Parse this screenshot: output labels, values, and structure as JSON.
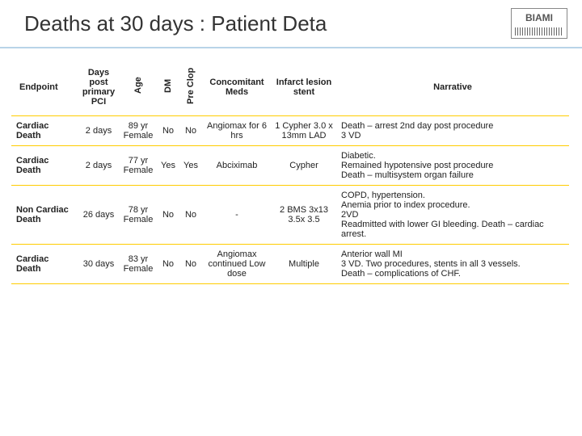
{
  "header": {
    "title": "Deaths at 30 days : Patient Deta",
    "logo_text": "BIAMI"
  },
  "columns": {
    "endpoint": "Endpoint",
    "days": "Days post primary PCI",
    "age": "Age",
    "dm": "DM",
    "preclop": "Pre Clop",
    "meds": "Concomitant Meds",
    "stent": "Infarct lesion stent",
    "narrative": "Narrative"
  },
  "rows": [
    {
      "endpoint": "Cardiac Death",
      "days": "2 days",
      "age": "89 yr Female",
      "dm": "No",
      "preclop": "No",
      "meds": "Angiomax for 6 hrs",
      "stent": "1 Cypher 3.0 x 13mm LAD",
      "narrative": "Death – arrest 2nd day post procedure\n3 VD"
    },
    {
      "endpoint": "Cardiac Death",
      "days": "2 days",
      "age": "77 yr Female",
      "dm": "Yes",
      "preclop": "Yes",
      "meds": "Abciximab",
      "stent": "Cypher",
      "narrative": "Diabetic.\nRemained hypotensive post procedure\nDeath – multisystem organ failure"
    },
    {
      "endpoint": "Non Cardiac Death",
      "days": "26 days",
      "age": "78 yr Female",
      "dm": "No",
      "preclop": "No",
      "meds": "-",
      "stent": "2  BMS 3x13 3.5x 3.5",
      "narrative": "COPD, hypertension.\nAnemia prior to index procedure.\n2VD\nReadmitted with lower GI bleeding. Death – cardiac arrest."
    },
    {
      "endpoint": "Cardiac Death",
      "days": "30 days",
      "age": "83 yr Female",
      "dm": "No",
      "preclop": "No",
      "meds": "Angiomax continued Low dose",
      "stent": "Multiple",
      "narrative": "Anterior wall MI\n3 VD. Two procedures, stents in all 3 vessels.\nDeath – complications of CHF."
    }
  ]
}
